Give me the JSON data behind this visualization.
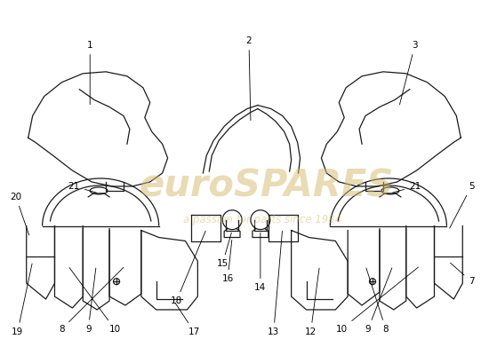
{
  "bg_color": "#ffffff",
  "line_color": "#1a1a1a",
  "label_color": "#000000",
  "watermark_color": "#d4b96a",
  "lw": 0.9,
  "fs": 7.5
}
